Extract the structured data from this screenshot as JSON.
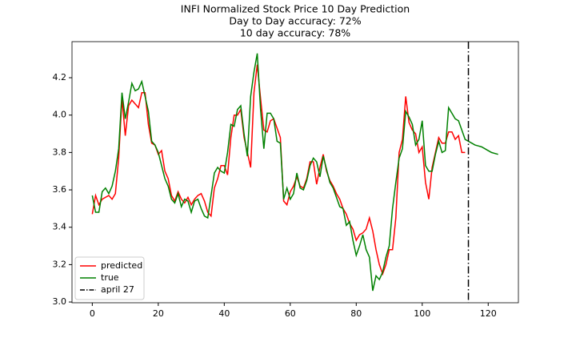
{
  "chart_data": {
    "type": "line",
    "title": [
      "INFI Normalized Stock Price 10 Day Prediction",
      "Day to Day accuracy: 72%",
      "10 day accuracy: 78%"
    ],
    "x": [
      0,
      1,
      2,
      3,
      4,
      5,
      6,
      7,
      8,
      9,
      10,
      11,
      12,
      13,
      14,
      15,
      16,
      17,
      18,
      19,
      20,
      21,
      22,
      23,
      24,
      25,
      26,
      27,
      28,
      29,
      30,
      31,
      32,
      33,
      34,
      35,
      36,
      37,
      38,
      39,
      40,
      41,
      42,
      43,
      44,
      45,
      46,
      47,
      48,
      49,
      50,
      51,
      52,
      53,
      54,
      55,
      56,
      57,
      58,
      59,
      60,
      61,
      62,
      63,
      64,
      65,
      66,
      67,
      68,
      69,
      70,
      71,
      72,
      73,
      74,
      75,
      76,
      77,
      78,
      79,
      80,
      81,
      82,
      83,
      84,
      85,
      86,
      87,
      88,
      89,
      90,
      91,
      92,
      93,
      94,
      95,
      96,
      97,
      98,
      99,
      100,
      101,
      102,
      103,
      104,
      105,
      106,
      107,
      108,
      109,
      110,
      111,
      112,
      113,
      114,
      115,
      116,
      117,
      118,
      119,
      120,
      121,
      122,
      123
    ],
    "series": [
      {
        "name": "predicted",
        "color": "#ff0000",
        "values": [
          3.47,
          3.57,
          3.52,
          3.55,
          3.56,
          3.57,
          3.55,
          3.58,
          3.77,
          4.09,
          3.89,
          4.05,
          4.08,
          4.06,
          4.04,
          4.12,
          4.12,
          3.95,
          3.85,
          3.84,
          3.79,
          3.81,
          3.7,
          3.66,
          3.57,
          3.54,
          3.59,
          3.55,
          3.53,
          3.56,
          3.52,
          3.55,
          3.57,
          3.58,
          3.54,
          3.48,
          3.46,
          3.61,
          3.66,
          3.73,
          3.73,
          3.68,
          3.88,
          4.0,
          4.0,
          4.03,
          3.88,
          3.8,
          3.72,
          4.12,
          4.27,
          4.09,
          3.92,
          3.91,
          3.97,
          3.98,
          3.93,
          3.88,
          3.54,
          3.52,
          3.59,
          3.62,
          3.67,
          3.62,
          3.61,
          3.66,
          3.75,
          3.75,
          3.63,
          3.72,
          3.79,
          3.7,
          3.65,
          3.62,
          3.58,
          3.55,
          3.5,
          3.47,
          3.42,
          3.39,
          3.33,
          3.36,
          3.37,
          3.39,
          3.45,
          3.38,
          3.28,
          3.2,
          3.15,
          3.2,
          3.28,
          3.28,
          3.45,
          3.8,
          3.87,
          4.1,
          3.96,
          3.92,
          3.9,
          3.8,
          3.83,
          3.64,
          3.55,
          3.72,
          3.8,
          3.88,
          3.85,
          3.85,
          3.91,
          3.91,
          3.87,
          3.89,
          3.8,
          3.8,
          null,
          null,
          null,
          null,
          null,
          null,
          null,
          null,
          null,
          null
        ]
      },
      {
        "name": "true",
        "color": "#008000",
        "values": [
          3.57,
          3.48,
          3.48,
          3.59,
          3.61,
          3.58,
          3.62,
          3.7,
          3.82,
          4.12,
          3.98,
          4.07,
          4.17,
          4.13,
          4.14,
          4.18,
          4.1,
          4.02,
          3.86,
          3.84,
          3.8,
          3.73,
          3.66,
          3.62,
          3.55,
          3.53,
          3.58,
          3.51,
          3.55,
          3.54,
          3.48,
          3.54,
          3.55,
          3.5,
          3.46,
          3.45,
          3.57,
          3.69,
          3.72,
          3.7,
          3.69,
          3.8,
          3.95,
          3.94,
          4.03,
          4.05,
          3.9,
          3.78,
          4.1,
          4.23,
          4.33,
          4.03,
          3.82,
          4.01,
          4.01,
          3.98,
          3.86,
          3.85,
          3.55,
          3.61,
          3.55,
          3.58,
          3.69,
          3.61,
          3.6,
          3.65,
          3.73,
          3.77,
          3.75,
          3.67,
          3.78,
          3.71,
          3.64,
          3.61,
          3.56,
          3.51,
          3.5,
          3.41,
          3.43,
          3.33,
          3.25,
          3.3,
          3.36,
          3.28,
          3.24,
          3.06,
          3.14,
          3.12,
          3.16,
          3.24,
          3.3,
          3.5,
          3.64,
          3.77,
          3.82,
          4.02,
          3.99,
          3.95,
          3.84,
          3.87,
          3.97,
          3.73,
          3.7,
          3.7,
          3.79,
          3.86,
          3.8,
          3.81,
          4.04,
          4.01,
          3.98,
          3.97,
          3.92,
          3.87,
          3.86,
          3.85,
          3.84,
          3.835,
          3.83,
          3.82,
          3.81,
          3.8,
          3.795,
          3.79
        ]
      }
    ],
    "vline": {
      "name": "april 27",
      "x": 114,
      "color": "#000000"
    },
    "xlim": [
      -6.15,
      129.15
    ],
    "ylim": [
      2.996,
      4.393
    ],
    "xticks": [
      0,
      20,
      40,
      60,
      80,
      100,
      120
    ],
    "yticks": [
      {
        "value": 3,
        "label": "3.0"
      },
      3.2,
      3.4,
      3.6,
      3.8,
      {
        "value": 4,
        "label": "4.0"
      },
      4.2
    ],
    "legend": "lower left"
  }
}
